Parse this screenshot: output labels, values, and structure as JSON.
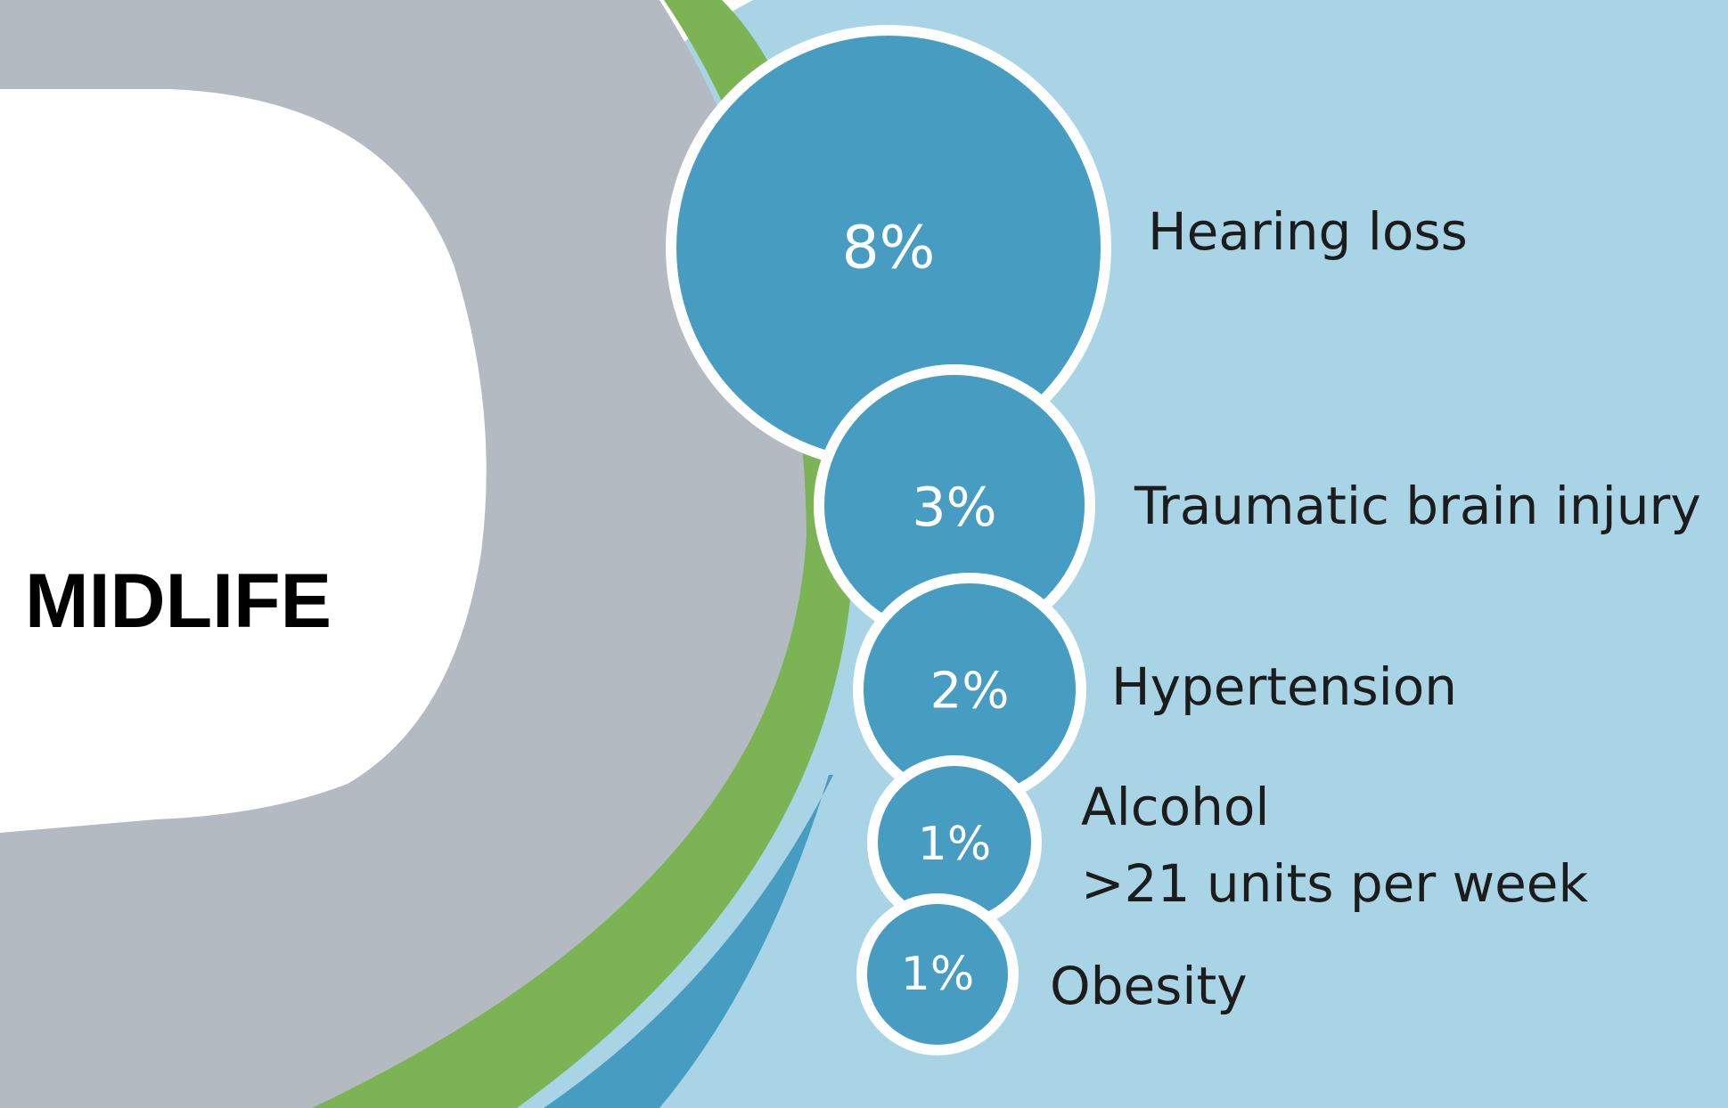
{
  "stage_label": "MIDLIFE",
  "factors": [
    {
      "percent": "8%",
      "label": "Hearing loss"
    },
    {
      "percent": "3%",
      "label": "Traumatic brain injury"
    },
    {
      "percent": "2%",
      "label": "Hypertension"
    },
    {
      "percent": "1%",
      "label": "Alcohol",
      "sublabel": ">21 units per week"
    },
    {
      "percent": "1%",
      "label": "Obesity"
    }
  ],
  "colors": {
    "outer_band": "#a8d4e5",
    "bubble": "#479cc1",
    "bubble_stroke": "#ffffff",
    "green_band": "#7cb354",
    "grey_band": "#b3bac2",
    "background": "#ffffff",
    "label_text": "#1c1c1c"
  }
}
